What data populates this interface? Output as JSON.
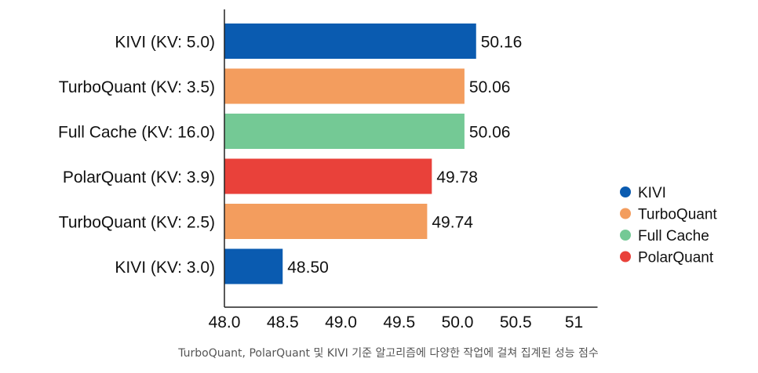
{
  "colors": {
    "KIVI": "#0a5bb0",
    "TurboQuant": "#f39d5e",
    "Full Cache": "#74c995",
    "PolarQuant": "#e9413a",
    "text": "#111111",
    "caption": "#555555"
  },
  "chart_data": {
    "type": "bar",
    "orientation": "horizontal",
    "categories": [
      "KIVI (KV: 5.0)",
      "TurboQuant (KV: 3.5)",
      "Full Cache (KV: 16.0)",
      "PolarQuant (KV: 3.9)",
      "TurboQuant (KV: 2.5)",
      "KIVI (KV: 3.0)"
    ],
    "values": [
      50.16,
      50.06,
      50.06,
      49.78,
      49.74,
      48.5
    ],
    "value_labels": [
      "50.16",
      "50.06",
      "50.06",
      "49.78",
      "49.74",
      "48.50"
    ],
    "bar_groups": [
      "KIVI",
      "TurboQuant",
      "Full Cache",
      "PolarQuant",
      "TurboQuant",
      "KIVI"
    ],
    "xlim": [
      48.0,
      51.0
    ],
    "xticks": [
      48.0,
      48.5,
      49.0,
      49.5,
      50.0,
      50.5,
      51
    ],
    "xtick_labels": [
      "48.0",
      "48.5",
      "49.0",
      "49.5",
      "50.0",
      "50.5",
      "51"
    ],
    "legend": [
      "KIVI",
      "TurboQuant",
      "Full Cache",
      "PolarQuant"
    ],
    "legend_position": "right",
    "grid": false,
    "title": "",
    "xlabel": "",
    "ylabel": ""
  },
  "caption": "TurboQuant, PolarQuant 및 KIVI 기준 알고리즘에 다양한 작업에 걸쳐 집계된 성능 점수"
}
